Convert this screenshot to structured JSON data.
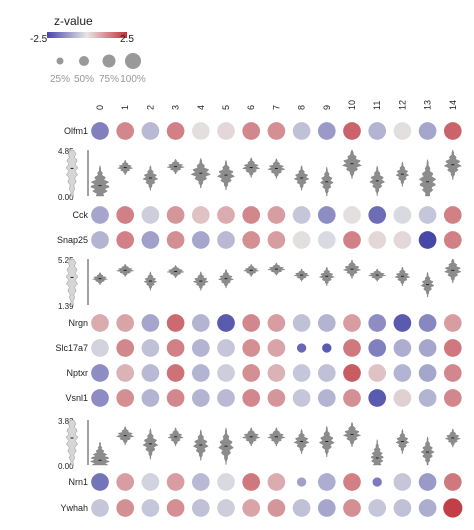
{
  "chart_data": {
    "type": "heatmap",
    "legend": {
      "title": "z-value",
      "min_label": "-2.5",
      "max_label": "2.5",
      "colors": {
        "low": "#4747a8",
        "mid": "#e6e6e6",
        "high": "#c0303a"
      },
      "size_title": "",
      "size_labels": [
        "25%",
        "50%",
        "75%",
        "100%"
      ],
      "size_values": [
        0.25,
        0.5,
        0.75,
        1.0
      ]
    },
    "columns": [
      "0",
      "1",
      "2",
      "3",
      "4",
      "5",
      "6",
      "7",
      "8",
      "9",
      "10",
      "11",
      "12",
      "13",
      "14"
    ],
    "dot_rows": [
      {
        "gene": "Olfm1",
        "z": [
          -1.6,
          1.3,
          -0.7,
          1.4,
          0.1,
          0.2,
          1.3,
          1.2,
          -0.6,
          -1.2,
          1.8,
          -0.8,
          0.1,
          -1.0,
          1.8
        ],
        "frac": [
          0.9,
          0.9,
          0.9,
          0.9,
          0.9,
          0.9,
          0.9,
          0.9,
          0.9,
          0.9,
          0.9,
          0.9,
          0.9,
          0.9,
          0.9
        ]
      },
      {
        "gene": "Cck",
        "z": [
          -1.0,
          1.4,
          -0.4,
          1.1,
          0.5,
          0.8,
          1.3,
          1.0,
          -0.5,
          -1.4,
          0.1,
          -1.9,
          -0.2,
          -0.5,
          1.4
        ],
        "frac": [
          0.9,
          0.9,
          0.9,
          0.9,
          0.9,
          0.9,
          0.9,
          0.9,
          0.9,
          0.9,
          0.9,
          0.9,
          0.9,
          0.9,
          0.9
        ]
      },
      {
        "gene": "Snap25",
        "z": [
          -0.8,
          1.4,
          -1.1,
          1.2,
          -1.0,
          -0.7,
          1.2,
          1.0,
          0.1,
          -0.2,
          1.4,
          0.2,
          0.2,
          -2.5,
          1.4
        ],
        "frac": [
          0.9,
          0.9,
          0.9,
          0.9,
          0.9,
          0.9,
          0.9,
          0.9,
          0.9,
          0.9,
          0.9,
          0.9,
          0.9,
          0.9,
          0.9
        ]
      },
      {
        "gene": "Nrgn",
        "z": [
          0.8,
          0.9,
          -1.0,
          1.7,
          -0.8,
          -2.2,
          1.3,
          1.0,
          -0.6,
          -0.8,
          1.0,
          -1.4,
          -2.2,
          -1.5,
          1.0
        ],
        "frac": [
          0.9,
          0.9,
          0.9,
          0.9,
          0.9,
          0.9,
          0.9,
          0.9,
          0.9,
          0.9,
          0.9,
          0.9,
          0.9,
          0.9,
          0.9
        ]
      },
      {
        "gene": "Slc17a7",
        "z": [
          -0.3,
          1.3,
          -0.6,
          1.4,
          -0.8,
          -0.5,
          1.2,
          0.9,
          -2.0,
          -2.2,
          1.5,
          -1.6,
          -0.9,
          -1.0,
          1.5
        ],
        "frac": [
          0.9,
          0.9,
          0.9,
          0.9,
          0.9,
          0.9,
          0.9,
          0.9,
          0.35,
          0.35,
          0.9,
          0.9,
          0.9,
          0.9,
          0.9
        ]
      },
      {
        "gene": "Nptxr",
        "z": [
          -1.4,
          0.7,
          -0.7,
          1.6,
          -0.8,
          -0.4,
          1.2,
          0.7,
          -0.5,
          -0.6,
          1.9,
          0.5,
          -0.8,
          -1.0,
          1.3
        ],
        "frac": [
          0.9,
          0.9,
          0.9,
          0.9,
          0.9,
          0.9,
          0.9,
          0.9,
          0.9,
          0.9,
          0.9,
          0.9,
          0.9,
          0.9,
          0.9
        ]
      },
      {
        "gene": "Vsnl1",
        "z": [
          -1.4,
          1.2,
          -0.8,
          1.3,
          -0.8,
          -0.7,
          1.3,
          1.1,
          -0.5,
          -0.8,
          1.2,
          -2.2,
          0.3,
          -0.8,
          1.3
        ],
        "frac": [
          0.9,
          0.9,
          0.9,
          0.9,
          0.9,
          0.9,
          0.9,
          0.9,
          0.9,
          0.9,
          0.9,
          0.9,
          0.9,
          0.9,
          0.9
        ]
      },
      {
        "gene": "Nrn1",
        "z": [
          -1.8,
          1.0,
          -0.3,
          1.0,
          -0.7,
          -0.2,
          1.5,
          0.8,
          -1.1,
          -0.9,
          1.4,
          -1.7,
          -0.5,
          -1.2,
          1.5
        ],
        "frac": [
          0.9,
          0.9,
          0.9,
          0.9,
          0.9,
          0.9,
          0.9,
          0.9,
          0.35,
          0.9,
          0.9,
          0.35,
          0.9,
          0.9,
          0.9
        ]
      },
      {
        "gene": "Ywhah",
        "z": [
          -0.5,
          1.2,
          -0.5,
          1.2,
          -0.6,
          -0.4,
          0.9,
          1.1,
          -0.6,
          -1.0,
          1.2,
          -0.5,
          -0.6,
          -0.9,
          2.3
        ],
        "frac": [
          0.9,
          0.9,
          0.9,
          0.9,
          0.9,
          0.9,
          0.9,
          0.9,
          0.9,
          0.9,
          0.9,
          0.9,
          0.9,
          0.9,
          1.0
        ]
      }
    ],
    "violin_panels": [
      {
        "ymax_label": "4.85",
        "ymin_label": "0.00",
        "ymax": 4.85,
        "medians": [
          1.1,
          3.0,
          1.9,
          3.1,
          2.4,
          2.2,
          3.0,
          2.9,
          1.9,
          1.5,
          3.4,
          1.6,
          2.3,
          1.5,
          3.3
        ],
        "spread": [
          0.8,
          0.3,
          0.5,
          0.3,
          0.6,
          0.6,
          0.4,
          0.4,
          0.5,
          0.6,
          0.6,
          0.6,
          0.5,
          0.9,
          0.6
        ],
        "widths": [
          0.9,
          0.7,
          0.7,
          0.8,
          0.9,
          0.8,
          0.8,
          0.8,
          0.7,
          0.6,
          0.9,
          0.7,
          0.6,
          0.8,
          0.8
        ]
      },
      {
        "ymax_label": "5.25",
        "ymin_label": "1.39",
        "ymax": 5.25,
        "ymin": 1.39,
        "medians": [
          3.6,
          4.3,
          3.4,
          4.2,
          3.4,
          3.6,
          4.3,
          4.4,
          3.9,
          3.8,
          4.4,
          3.9,
          3.8,
          3.1,
          4.3
        ],
        "spread": [
          0.2,
          0.2,
          0.3,
          0.2,
          0.3,
          0.3,
          0.2,
          0.2,
          0.2,
          0.3,
          0.3,
          0.2,
          0.3,
          0.4,
          0.4
        ],
        "widths": [
          0.7,
          0.8,
          0.6,
          0.8,
          0.7,
          0.7,
          0.7,
          0.8,
          0.7,
          0.7,
          0.8,
          0.8,
          0.7,
          0.6,
          0.8
        ]
      },
      {
        "ymax_label": "3.83",
        "ymin_label": "0.00",
        "ymax": 3.83,
        "medians": [
          0.4,
          2.5,
          1.8,
          2.4,
          1.7,
          1.6,
          2.4,
          2.4,
          2.0,
          2.0,
          2.6,
          0.6,
          2.0,
          1.1,
          2.3
        ],
        "spread": [
          0.6,
          0.3,
          0.5,
          0.3,
          0.5,
          0.6,
          0.3,
          0.3,
          0.4,
          0.5,
          0.4,
          0.6,
          0.4,
          0.5,
          0.3
        ],
        "widths": [
          0.9,
          0.8,
          0.7,
          0.7,
          0.7,
          0.7,
          0.8,
          0.8,
          0.7,
          0.7,
          0.8,
          0.6,
          0.6,
          0.6,
          0.7
        ]
      }
    ]
  }
}
